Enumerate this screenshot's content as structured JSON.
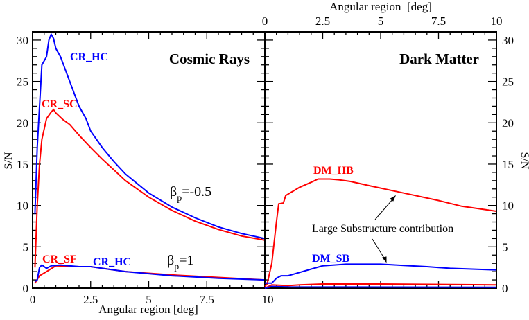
{
  "chart_data": [
    {
      "type": "line",
      "panel_title": "Cosmic Rays",
      "xlabel": "Angular region [deg]",
      "ylabel": "S/N",
      "xlim": [
        0,
        10
      ],
      "ylim": [
        0,
        31
      ],
      "xticks": [
        "0",
        "2.5",
        "5",
        "7.5",
        "10"
      ],
      "yticks": [
        "0",
        "5",
        "10",
        "15",
        "20",
        "25",
        "30"
      ],
      "annotations": [
        "β_p=-0.5",
        "β_p=1"
      ],
      "annotation_parts": {
        "beta": "β",
        "sub": "p",
        "a": "=-0.5",
        "b": "=1"
      },
      "series": [
        {
          "name": "CR_HC",
          "color": "#0000ff",
          "group": "β_p=-0.5",
          "x": [
            0.1,
            0.2,
            0.3,
            0.4,
            0.5,
            0.6,
            0.7,
            0.8,
            0.9,
            1.0,
            1.2,
            1.4,
            1.6,
            2.0,
            2.3,
            2.5,
            3.0,
            3.5,
            4.0,
            5.0,
            6.0,
            7.0,
            8.0,
            9.0,
            10.0
          ],
          "y": [
            9,
            17,
            22,
            27,
            27.5,
            28,
            30,
            30.7,
            30.2,
            29,
            28,
            26.5,
            25,
            22,
            20.5,
            19,
            17,
            15.3,
            13.8,
            11.5,
            9.8,
            8.5,
            7.4,
            6.6,
            6.0
          ]
        },
        {
          "name": "CR_SC",
          "color": "#ff0000",
          "group": "β_p=-0.5",
          "x": [
            0.1,
            0.2,
            0.3,
            0.4,
            0.6,
            0.8,
            0.9,
            1.0,
            1.3,
            1.6,
            2.0,
            2.5,
            3.0,
            3.5,
            4.0,
            5.0,
            6.0,
            7.0,
            8.0,
            9.0,
            10.0
          ],
          "y": [
            2.5,
            10,
            15,
            18,
            20.5,
            21.3,
            21.6,
            21.2,
            20.4,
            19.8,
            18.5,
            17,
            15.6,
            14.3,
            13,
            11,
            9.4,
            8.1,
            7.1,
            6.3,
            5.8
          ]
        },
        {
          "name": "CR_SF",
          "color": "#ff0000",
          "group": "β_p=1",
          "x": [
            0.1,
            0.3,
            0.6,
            1.0,
            2.0,
            2.5,
            4.0,
            6.0,
            8.0,
            10.0
          ],
          "y": [
            0.6,
            1.5,
            2.0,
            2.7,
            2.6,
            2.6,
            2.0,
            1.6,
            1.3,
            1.0
          ]
        },
        {
          "name": "CR_HC",
          "color": "#0000ff",
          "group": "β_p=1",
          "x": [
            0.1,
            0.2,
            0.3,
            0.4,
            0.6,
            0.8,
            1.2,
            2.0,
            2.5,
            4.0,
            6.0,
            8.0,
            10.0
          ],
          "y": [
            0.8,
            1.0,
            2.5,
            2.8,
            2.4,
            2.7,
            2.8,
            2.6,
            2.6,
            2.0,
            1.5,
            1.2,
            1.0
          ]
        }
      ]
    },
    {
      "type": "line",
      "panel_title": "Dark Matter",
      "xlabel": "Angular region  [deg]",
      "ylabel": "S/N",
      "xlim": [
        0,
        10
      ],
      "ylim": [
        0,
        31
      ],
      "xticks": [
        "0",
        "2.5",
        "5",
        "7.5",
        "10"
      ],
      "yticks": [
        "0",
        "5",
        "10",
        "15",
        "20",
        "25",
        "30"
      ],
      "annotation": "Large Substructure contribution",
      "series": [
        {
          "name": "DM_HB",
          "color": "#ff0000",
          "x": [
            0,
            0.1,
            0.3,
            0.5,
            0.6,
            0.8,
            0.9,
            1.2,
            1.5,
            2.0,
            2.3,
            2.8,
            3.2,
            3.7,
            4.5,
            5.5,
            6.5,
            7.5,
            8.5,
            10.0
          ],
          "y": [
            0.2,
            0.5,
            3,
            8,
            10.2,
            10.3,
            11.2,
            11.7,
            12.2,
            12.8,
            13.2,
            13.2,
            13.1,
            12.9,
            12.4,
            11.8,
            11.2,
            10.6,
            9.9,
            9.3
          ]
        },
        {
          "name": "DM_SB",
          "color": "#0000ff",
          "x": [
            0,
            0.3,
            0.5,
            0.7,
            1.0,
            1.5,
            2.0,
            2.5,
            3.0,
            3.5,
            5.0,
            6.0,
            7.0,
            8.0,
            10.0
          ],
          "y": [
            0.6,
            0.6,
            1.2,
            1.5,
            1.5,
            1.9,
            2.3,
            2.7,
            2.8,
            2.9,
            2.9,
            2.75,
            2.6,
            2.4,
            2.2
          ]
        },
        {
          "color": "#ff0000",
          "x": [
            0,
            0.3,
            1.0,
            1.5,
            2.5,
            5.0,
            10.0
          ],
          "y": [
            0,
            0.4,
            0.3,
            0.4,
            0.5,
            0.5,
            0.4
          ]
        },
        {
          "color": "#0000ff",
          "x": [
            0,
            0.3,
            1.0,
            10.0
          ],
          "y": [
            0,
            0.2,
            0.15,
            0.1
          ]
        }
      ]
    }
  ]
}
